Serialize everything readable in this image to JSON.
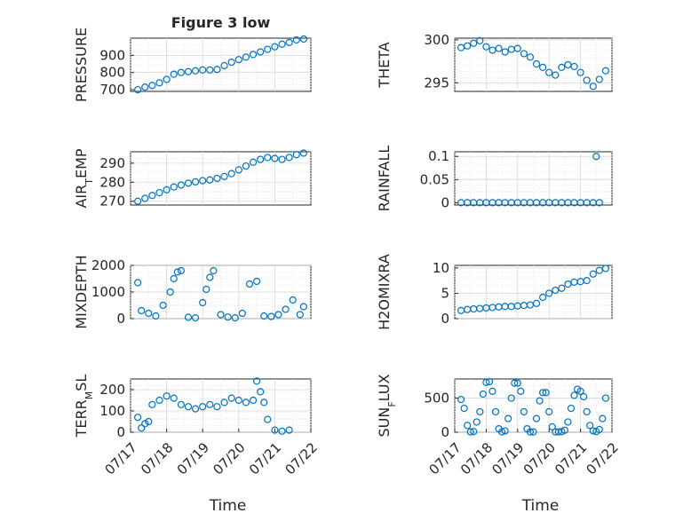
{
  "figure": {
    "xlabel": "Time"
  },
  "colors": {
    "marker": "#0072bd"
  },
  "chart_data": [
    {
      "type": "scatter",
      "title": "Figure 3 low",
      "ylabel": "PRESSURE",
      "ylim": [
        690,
        1000
      ],
      "yticks": [
        700,
        800,
        900
      ],
      "xlim": [
        0,
        5
      ],
      "xticklabels": [],
      "series": [
        {
          "x": [
            0.2,
            0.4,
            0.6,
            0.8,
            1.0,
            1.2,
            1.4,
            1.6,
            1.8,
            2.0,
            2.2,
            2.4,
            2.6,
            2.8,
            3.0,
            3.2,
            3.4,
            3.6,
            3.8,
            4.0,
            4.2,
            4.4,
            4.6,
            4.8
          ],
          "y": [
            700,
            715,
            725,
            740,
            760,
            790,
            800,
            805,
            810,
            815,
            815,
            818,
            840,
            860,
            875,
            890,
            905,
            920,
            935,
            950,
            965,
            975,
            990,
            995
          ]
        }
      ]
    },
    {
      "type": "scatter",
      "ylabel": "THETA",
      "ylim": [
        294,
        300.2
      ],
      "yticks": [
        295,
        300
      ],
      "xlim": [
        0,
        5
      ],
      "xticklabels": [],
      "series": [
        {
          "x": [
            0.2,
            0.4,
            0.6,
            0.8,
            1.0,
            1.2,
            1.4,
            1.6,
            1.8,
            2.0,
            2.2,
            2.4,
            2.6,
            2.8,
            3.0,
            3.2,
            3.4,
            3.6,
            3.8,
            4.0,
            4.2,
            4.4,
            4.6,
            4.8
          ],
          "y": [
            299.1,
            299.3,
            299.6,
            299.9,
            299.2,
            298.8,
            299.0,
            298.6,
            298.9,
            299.0,
            298.4,
            298.0,
            297.2,
            296.8,
            296.2,
            295.9,
            296.8,
            297.1,
            296.9,
            296.2,
            295.3,
            294.6,
            295.4,
            296.4
          ]
        }
      ]
    },
    {
      "type": "scatter",
      "ylabel": "AIR_TEMP",
      "ylim": [
        268,
        296
      ],
      "yticks": [
        270,
        280,
        290
      ],
      "xlim": [
        0,
        5
      ],
      "xticklabels": [],
      "series": [
        {
          "x": [
            0.2,
            0.4,
            0.6,
            0.8,
            1.0,
            1.2,
            1.4,
            1.6,
            1.8,
            2.0,
            2.2,
            2.4,
            2.6,
            2.8,
            3.0,
            3.2,
            3.4,
            3.6,
            3.8,
            4.0,
            4.2,
            4.4,
            4.6,
            4.8
          ],
          "y": [
            270,
            271.5,
            273,
            274.5,
            276,
            277.5,
            278.5,
            279.5,
            280.2,
            280.8,
            281.2,
            282,
            283,
            284.5,
            286.5,
            288.5,
            290.5,
            292,
            293,
            292.5,
            292,
            293,
            294.5,
            295.3
          ]
        }
      ]
    },
    {
      "type": "scatter",
      "ylabel": "RAINFALL",
      "ylim": [
        -0.005,
        0.11
      ],
      "yticks": [
        0,
        0.05,
        0.1
      ],
      "ytickLabels": [
        "0",
        "0.05",
        "0.1"
      ],
      "xlim": [
        0,
        5
      ],
      "xticklabels": [],
      "series": [
        {
          "x": [
            0.2,
            0.4,
            0.6,
            0.8,
            1.0,
            1.2,
            1.4,
            1.6,
            1.8,
            2.0,
            2.2,
            2.4,
            2.6,
            2.8,
            3.0,
            3.2,
            3.4,
            3.6,
            3.8,
            4.0,
            4.2,
            4.4,
            4.5,
            4.6
          ],
          "y": [
            0,
            0,
            0,
            0,
            0,
            0,
            0,
            0,
            0,
            0,
            0,
            0,
            0,
            0,
            0,
            0,
            0,
            0,
            0,
            0,
            0,
            0,
            0.1,
            0
          ]
        }
      ]
    },
    {
      "type": "scatter",
      "ylabel": "MIXDEPTH",
      "ylim": [
        0,
        2000
      ],
      "yticks": [
        0,
        1000,
        2000
      ],
      "xlim": [
        0,
        5
      ],
      "xticklabels": [],
      "series": [
        {
          "x": [
            0.2,
            0.3,
            0.5,
            0.7,
            0.9,
            1.1,
            1.2,
            1.3,
            1.4,
            1.6,
            1.8,
            2.0,
            2.1,
            2.2,
            2.3,
            2.5,
            2.7,
            2.9,
            3.1,
            3.3,
            3.5,
            3.7,
            3.9,
            4.1,
            4.3,
            4.5,
            4.7,
            4.8
          ],
          "y": [
            1350,
            300,
            200,
            100,
            500,
            1000,
            1500,
            1750,
            1800,
            50,
            30,
            600,
            1100,
            1550,
            1800,
            150,
            60,
            30,
            200,
            1300,
            1400,
            100,
            80,
            150,
            350,
            700,
            150,
            450
          ]
        }
      ]
    },
    {
      "type": "scatter",
      "ylabel": "H2OMIXRA",
      "ylim": [
        0,
        10.5
      ],
      "yticks": [
        0,
        5,
        10
      ],
      "xlim": [
        0,
        5
      ],
      "xticklabels": [],
      "series": [
        {
          "x": [
            0.2,
            0.4,
            0.6,
            0.8,
            1.0,
            1.2,
            1.4,
            1.6,
            1.8,
            2.0,
            2.2,
            2.4,
            2.6,
            2.8,
            3.0,
            3.2,
            3.4,
            3.6,
            3.8,
            4.0,
            4.2,
            4.4,
            4.6,
            4.8
          ],
          "y": [
            1.6,
            1.8,
            1.9,
            2.0,
            2.1,
            2.2,
            2.3,
            2.4,
            2.4,
            2.5,
            2.6,
            2.7,
            3.0,
            4.2,
            5.0,
            5.6,
            6.0,
            6.8,
            7.2,
            7.3,
            7.5,
            8.8,
            9.5,
            9.9
          ]
        }
      ]
    },
    {
      "type": "scatter",
      "ylabel": "TERR_MSL",
      "ylim": [
        0,
        250
      ],
      "yticks": [
        0,
        100,
        200
      ],
      "xlim": [
        0,
        5
      ],
      "xticklabels": [
        "07/17",
        "07/18",
        "07/19",
        "07/20",
        "07/21",
        "07/22"
      ],
      "series": [
        {
          "x": [
            0.2,
            0.3,
            0.4,
            0.5,
            0.6,
            0.8,
            1.0,
            1.2,
            1.4,
            1.6,
            1.8,
            2.0,
            2.2,
            2.4,
            2.6,
            2.8,
            3.0,
            3.2,
            3.4,
            3.5,
            3.6,
            3.7,
            3.8,
            4.0,
            4.2,
            4.4
          ],
          "y": [
            70,
            20,
            40,
            50,
            130,
            150,
            170,
            160,
            130,
            120,
            110,
            120,
            130,
            120,
            140,
            160,
            150,
            140,
            150,
            240,
            190,
            140,
            60,
            10,
            5,
            10
          ]
        }
      ]
    },
    {
      "type": "scatter",
      "ylabel": "SUN_FLUX",
      "ylim": [
        0,
        780
      ],
      "yticks": [
        0,
        500
      ],
      "xlim": [
        0,
        5
      ],
      "xticklabels": [
        "07/17",
        "07/18",
        "07/19",
        "07/20",
        "07/21",
        "07/22"
      ],
      "series": [
        {
          "x": [
            0.2,
            0.3,
            0.4,
            0.5,
            0.6,
            0.7,
            0.8,
            0.9,
            1.0,
            1.1,
            1.2,
            1.3,
            1.4,
            1.5,
            1.6,
            1.7,
            1.8,
            1.9,
            2.0,
            2.1,
            2.2,
            2.3,
            2.4,
            2.5,
            2.6,
            2.7,
            2.8,
            2.9,
            3.0,
            3.1,
            3.2,
            3.3,
            3.4,
            3.5,
            3.6,
            3.7,
            3.8,
            3.9,
            4.0,
            4.1,
            4.2,
            4.3,
            4.4,
            4.5,
            4.6,
            4.7,
            4.8
          ],
          "y": [
            480,
            350,
            100,
            5,
            10,
            150,
            300,
            560,
            730,
            740,
            600,
            300,
            50,
            5,
            20,
            200,
            500,
            720,
            720,
            600,
            300,
            50,
            5,
            5,
            200,
            460,
            580,
            580,
            300,
            80,
            5,
            5,
            10,
            30,
            150,
            350,
            540,
            630,
            600,
            520,
            300,
            100,
            20,
            10,
            40,
            200,
            500
          ]
        }
      ]
    }
  ]
}
